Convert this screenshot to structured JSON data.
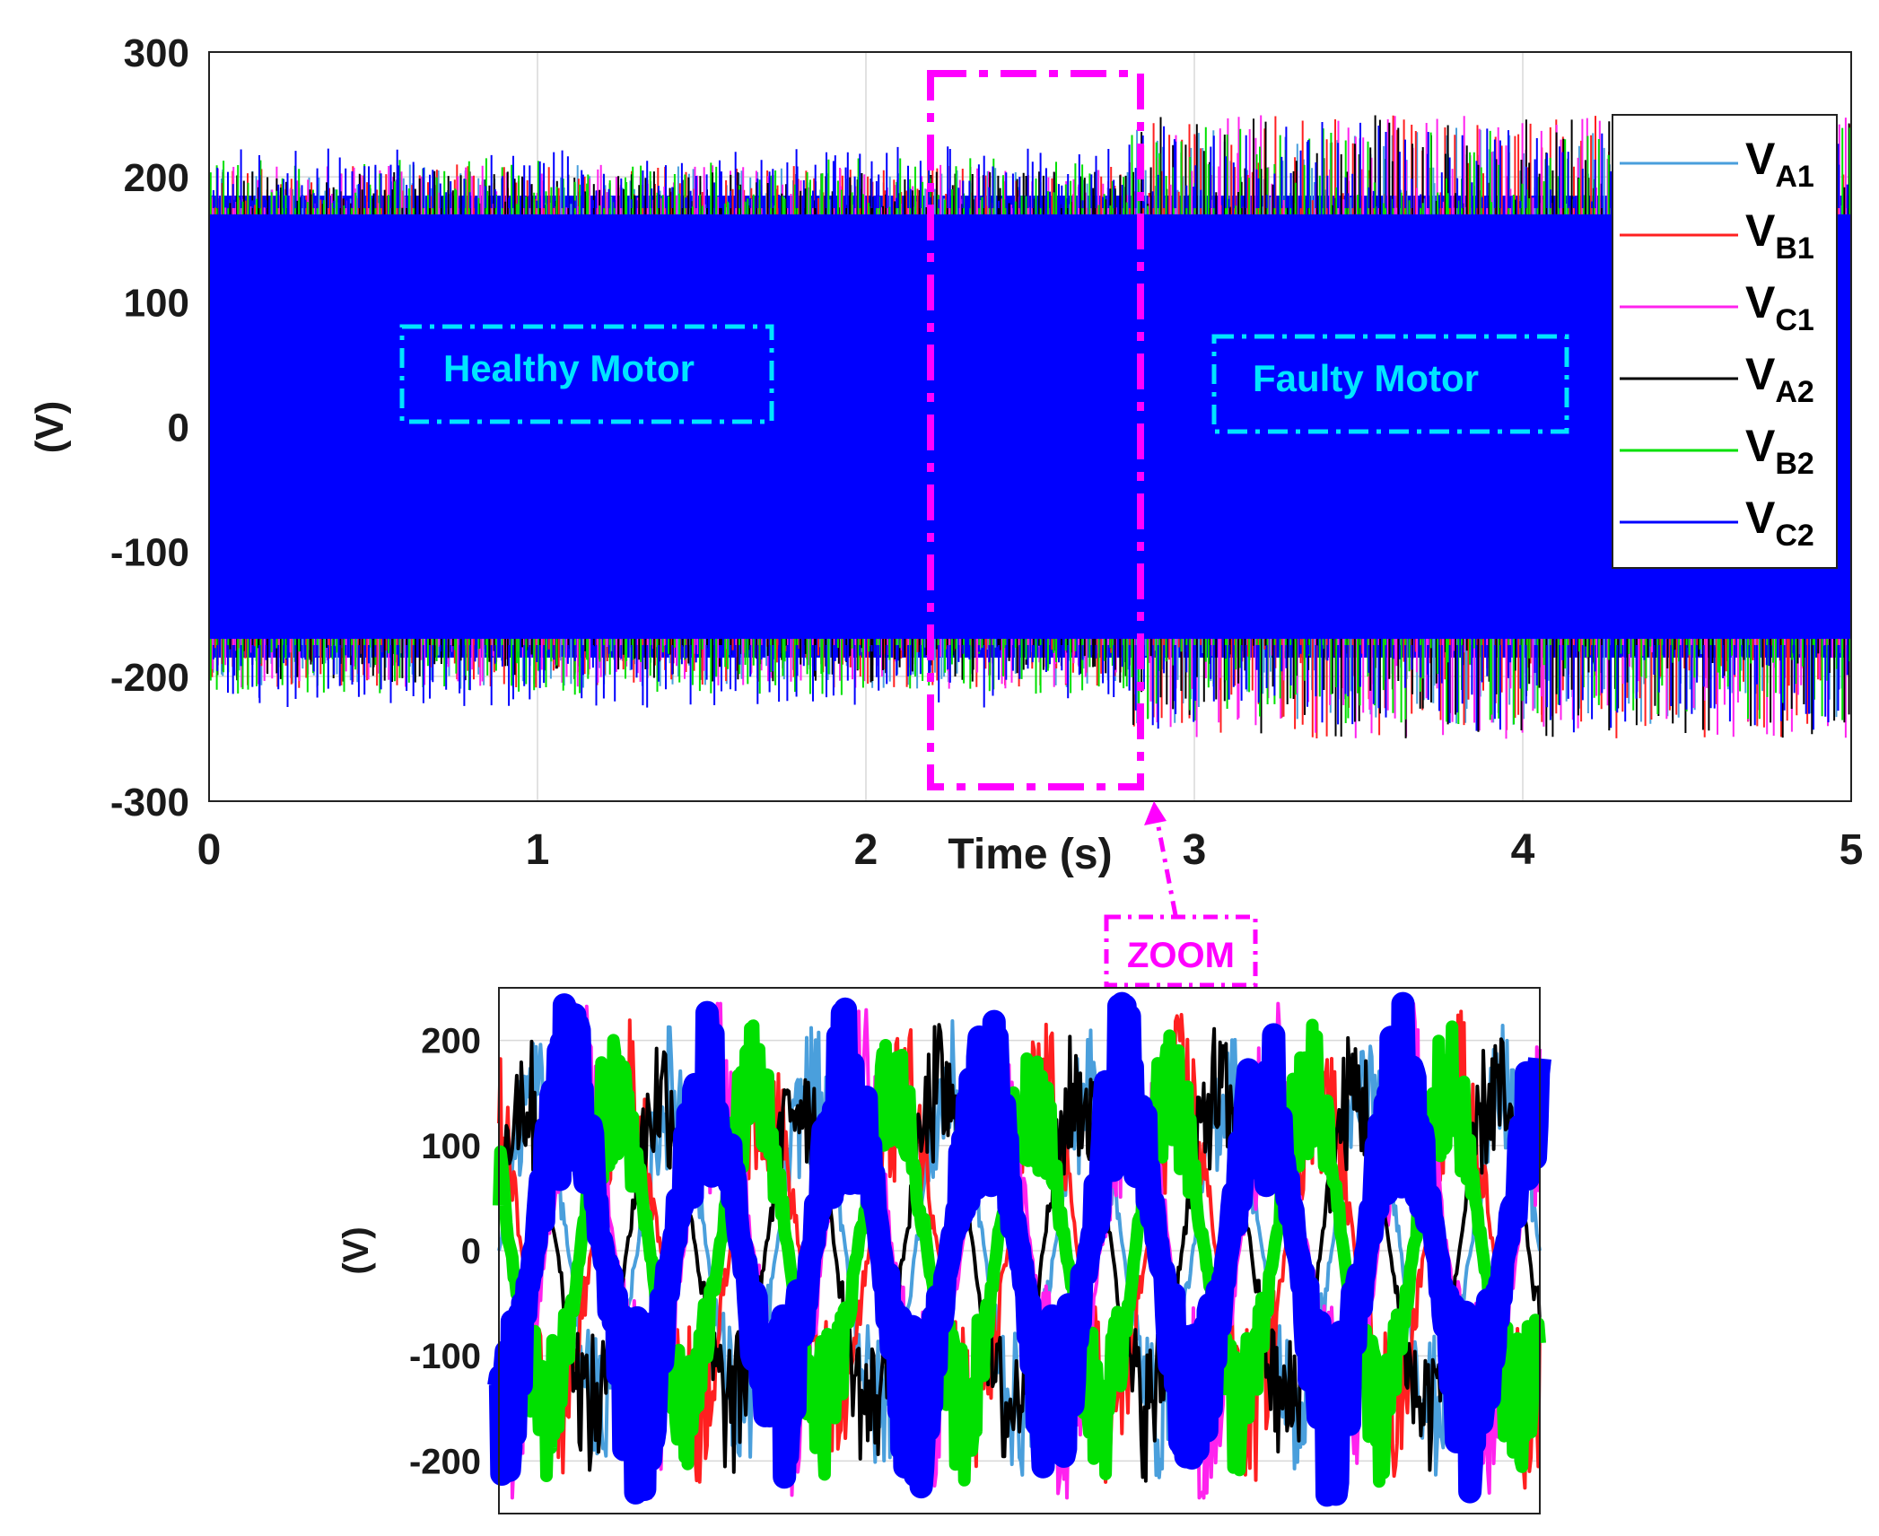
{
  "colors": {
    "VA1": "#4a9fdc",
    "VB1": "#ff2020",
    "VC1": "#ff22ee",
    "VA2": "#000000",
    "VB2": "#00e000",
    "VC2": "#0000ff",
    "annotation_cyan": "#00e5ff",
    "zoom_magenta": "#ff00ff",
    "grid": "#d9d9d9"
  },
  "chart_data": [
    {
      "id": "main",
      "type": "line",
      "title": "",
      "xlabel": "Time (s)",
      "ylabel": "(V)",
      "xlim": [
        0,
        5
      ],
      "ylim": [
        -300,
        300
      ],
      "xticks": [
        0,
        1,
        2,
        3,
        4,
        5
      ],
      "yticks": [
        300,
        200,
        100,
        0,
        -100,
        -200,
        -300
      ],
      "grid": true,
      "legend_position": "top-right",
      "series": [
        {
          "key": "VA1",
          "name": "V",
          "sub": "A1",
          "amplitude": 180,
          "peak_healthy": 210,
          "peak_faulty": 240
        },
        {
          "key": "VB1",
          "name": "V",
          "sub": "B1",
          "amplitude": 180,
          "peak_healthy": 210,
          "peak_faulty": 250
        },
        {
          "key": "VC1",
          "name": "V",
          "sub": "C1",
          "amplitude": 180,
          "peak_healthy": 210,
          "peak_faulty": 250
        },
        {
          "key": "VA2",
          "name": "V",
          "sub": "A2",
          "amplitude": 180,
          "peak_healthy": 205,
          "peak_faulty": 250
        },
        {
          "key": "VB2",
          "name": "V",
          "sub": "B2",
          "amplitude": 180,
          "peak_healthy": 215,
          "peak_faulty": 240
        },
        {
          "key": "VC2",
          "name": "V",
          "sub": "C2",
          "amplitude": 185,
          "peak_healthy": 225,
          "peak_faulty": 245
        }
      ],
      "fault_onset_s": 2.8,
      "annotations": {
        "healthy": "Healthy Motor",
        "faulty": "Faulty Motor",
        "zoom": "ZOOM"
      },
      "zoom_window": {
        "x": [
          2.2,
          2.85
        ],
        "y": [
          -285,
          285
        ]
      }
    },
    {
      "id": "zoom",
      "type": "line",
      "title": "",
      "xlabel": "",
      "ylabel": "(V)",
      "ylim": [
        -250,
        250
      ],
      "yticks": [
        200,
        100,
        0,
        -100,
        -200
      ],
      "grid": true,
      "cycles": 7.5,
      "series": [
        {
          "key": "VA1",
          "amplitude": 150,
          "noise_peak": 200
        },
        {
          "key": "VB1",
          "amplitude": 150,
          "noise_peak": 210
        },
        {
          "key": "VC1",
          "amplitude": 150,
          "noise_peak": 230
        },
        {
          "key": "VA2",
          "amplitude": 150,
          "noise_peak": 200
        },
        {
          "key": "VB2",
          "amplitude": 150,
          "noise_peak": 200
        },
        {
          "key": "VC2",
          "amplitude": 150,
          "noise_peak": 220
        }
      ]
    }
  ]
}
